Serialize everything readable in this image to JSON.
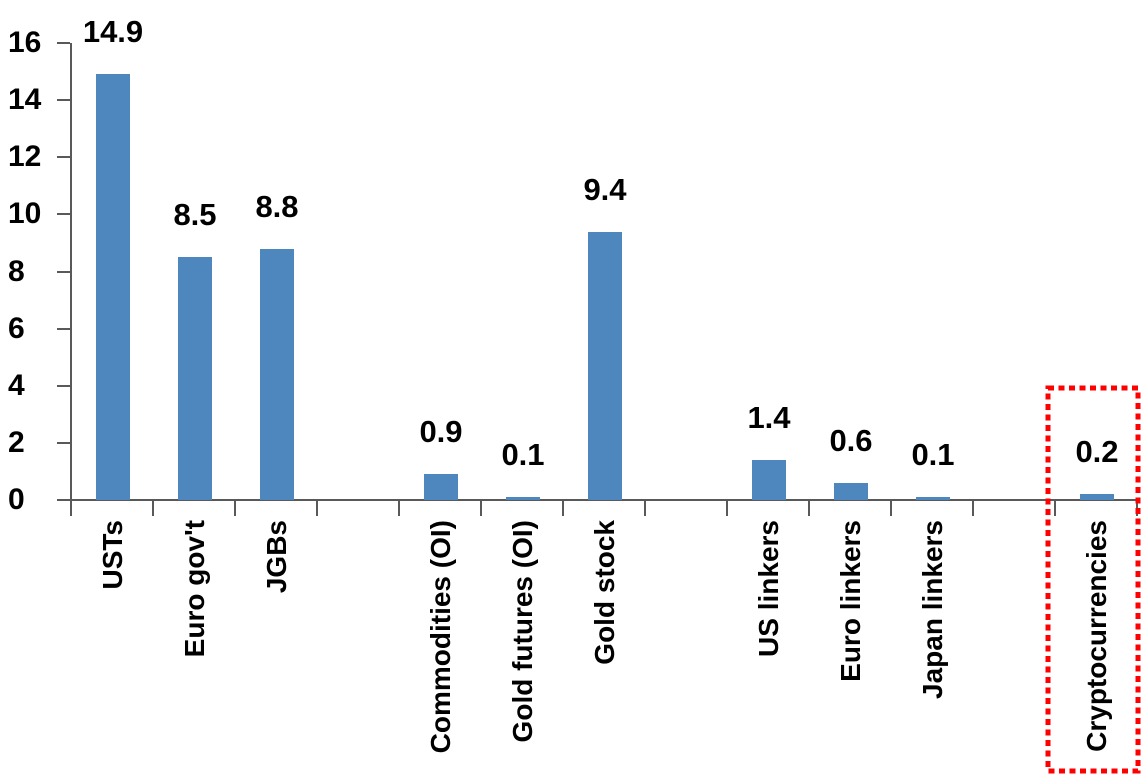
{
  "chart_data": {
    "type": "bar",
    "title": "",
    "xlabel": "",
    "ylabel": "",
    "categories": [
      "USTs",
      "Euro gov't",
      "JGBs",
      "",
      "Commodities (OI)",
      "Gold futures (OI)",
      "Gold stock",
      "",
      "US linkers",
      "Euro linkers",
      "Japan linkers",
      "",
      "Cryptocurrencies"
    ],
    "values": [
      14.9,
      8.5,
      8.8,
      null,
      0.9,
      0.1,
      9.4,
      null,
      1.4,
      0.6,
      0.1,
      null,
      0.2
    ],
    "value_labels": [
      "14.9",
      "8.5",
      "8.8",
      "",
      "0.9",
      "0.1",
      "9.4",
      "",
      "1.4",
      "0.6",
      "0.1",
      "",
      "0.2"
    ],
    "ylim": [
      0,
      16
    ],
    "yticks": [
      0,
      2,
      4,
      6,
      8,
      10,
      12,
      14,
      16
    ],
    "ytick_labels": [
      "0",
      "2",
      "4",
      "6",
      "8",
      "10",
      "12",
      "14",
      "16"
    ],
    "grid": false,
    "legend": null,
    "colors": {
      "bar": "#4E87BE",
      "axis": "#595959",
      "text": "#000000",
      "highlight_box": "#FF0000",
      "background": "#FFFFFF"
    },
    "highlight": {
      "category": "Cryptocurrencies",
      "value_label": "0.2",
      "shape": "red-dotted-rectangle"
    }
  }
}
